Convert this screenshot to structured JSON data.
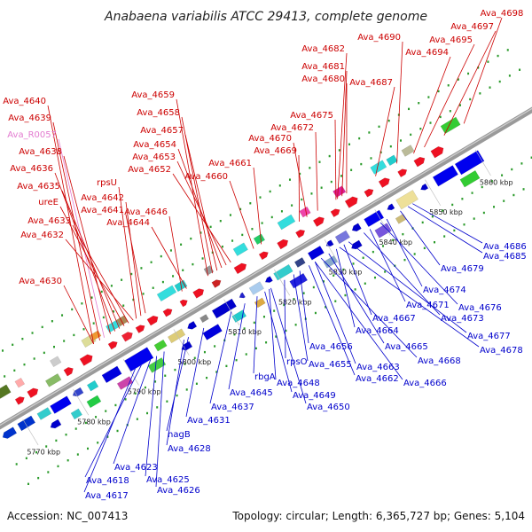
{
  "title": "Anabaena variabilis ATCC 29413, complete genome",
  "footer": {
    "accession": "Accession: NC_007413",
    "topology": "Topology: circular; Length: 6,365,727 bp; Genes: 5,104"
  },
  "ticks": [
    "5770 kbp",
    "5780 kbp",
    "5790 kbp",
    "5800 kbp",
    "5810 kbp",
    "5820 kbp",
    "5830 kbp",
    "5840 kbp",
    "5850 kbp",
    "5860 kbp"
  ],
  "colors": {
    "plus_strand_label": "#cc0000",
    "minus_strand_label": "#0000cc",
    "rna_label": "#e37bd0",
    "backbone": "#888888"
  },
  "upper_labels": [
    {
      "text": "Ava_4698",
      "kind": "gene"
    },
    {
      "text": "Ava_4697",
      "kind": "gene"
    },
    {
      "text": "Ava_4690",
      "kind": "gene"
    },
    {
      "text": "Ava_4695",
      "kind": "gene"
    },
    {
      "text": "Ava_4694",
      "kind": "gene"
    },
    {
      "text": "Ava_4682",
      "kind": "gene"
    },
    {
      "text": "Ava_4681",
      "kind": "gene"
    },
    {
      "text": "Ava_4680",
      "kind": "gene"
    },
    {
      "text": "Ava_4687",
      "kind": "gene"
    },
    {
      "text": "Ava_4640",
      "kind": "gene"
    },
    {
      "text": "Ava_4659",
      "kind": "gene"
    },
    {
      "text": "Ava_4639",
      "kind": "gene"
    },
    {
      "text": "Ava_4658",
      "kind": "gene"
    },
    {
      "text": "Ava_4675",
      "kind": "gene"
    },
    {
      "text": "Ava_R0057",
      "kind": "rna"
    },
    {
      "text": "Ava_4657",
      "kind": "gene"
    },
    {
      "text": "Ava_4672",
      "kind": "gene"
    },
    {
      "text": "Ava_4670",
      "kind": "gene"
    },
    {
      "text": "Ava_4654",
      "kind": "gene"
    },
    {
      "text": "Ava_4638",
      "kind": "gene"
    },
    {
      "text": "Ava_4669",
      "kind": "gene"
    },
    {
      "text": "Ava_4653",
      "kind": "gene"
    },
    {
      "text": "Ava_4661",
      "kind": "gene"
    },
    {
      "text": "Ava_4636",
      "kind": "gene"
    },
    {
      "text": "Ava_4652",
      "kind": "gene"
    },
    {
      "text": "Ava_4660",
      "kind": "gene"
    },
    {
      "text": "rpsU",
      "kind": "gene"
    },
    {
      "text": "Ava_4635",
      "kind": "gene"
    },
    {
      "text": "Ava_4642",
      "kind": "gene"
    },
    {
      "text": "ureE",
      "kind": "gene"
    },
    {
      "text": "Ava_4641",
      "kind": "gene"
    },
    {
      "text": "Ava_4646",
      "kind": "gene"
    },
    {
      "text": "Ava_4633",
      "kind": "gene"
    },
    {
      "text": "Ava_4644",
      "kind": "gene"
    },
    {
      "text": "Ava_4632",
      "kind": "gene"
    },
    {
      "text": "Ava_4630",
      "kind": "gene"
    }
  ],
  "lower_labels": [
    "Ava_4686",
    "Ava_4685",
    "Ava_4679",
    "Ava_4674",
    "Ava_4676",
    "Ava_4671",
    "Ava_4673",
    "Ava_4667",
    "Ava_4677",
    "Ava_4664",
    "Ava_4678",
    "Ava_4665",
    "Ava_4656",
    "Ava_4668",
    "Ava_4663",
    "Ava_4655",
    "rpsO",
    "Ava_4662",
    "Ava_4666",
    "Ava_4648",
    "rbgA",
    "Ava_4649",
    "Ava_4645",
    "Ava_4650",
    "Ava_4637",
    "Ava_4631",
    "nagB",
    "Ava_4628",
    "Ava_4623",
    "Ava_4618",
    "Ava_4625",
    "Ava_4626",
    "Ava_4617"
  ]
}
